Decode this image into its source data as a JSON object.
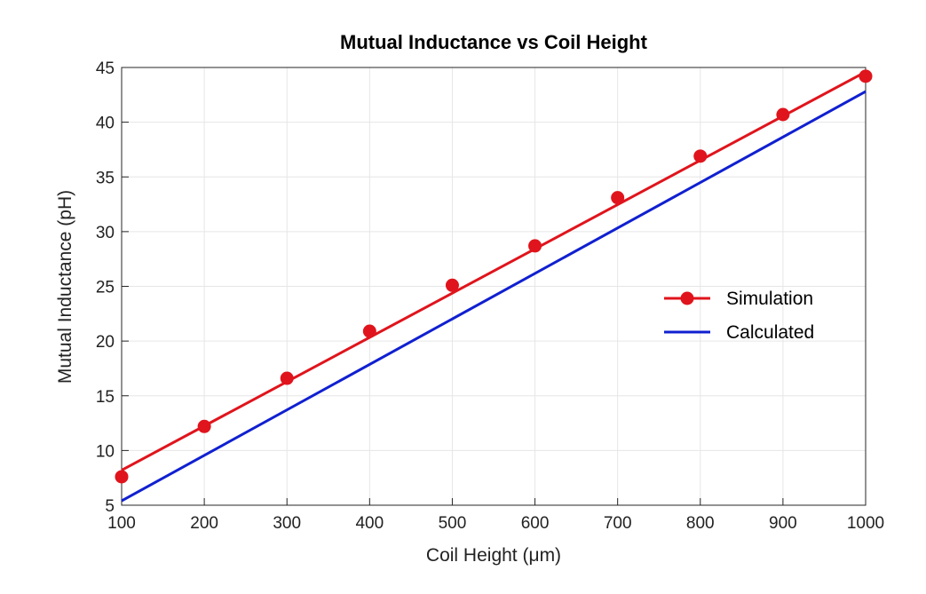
{
  "chart_data": {
    "type": "line",
    "title": "Mutual Inductance vs Coil Height",
    "xlabel": "Coil Height (μm)",
    "ylabel": "Mutual Inductance (pH)",
    "xlim": [
      100,
      1000
    ],
    "ylim": [
      5,
      45
    ],
    "xticks": [
      100,
      200,
      300,
      400,
      500,
      600,
      700,
      800,
      900,
      1000
    ],
    "yticks": [
      5,
      10,
      15,
      20,
      25,
      30,
      35,
      40,
      45
    ],
    "grid": true,
    "legend_position": "right",
    "series": [
      {
        "name": "Simulation",
        "color": "#e0141c",
        "marker": "circle",
        "x": [
          100,
          200,
          300,
          400,
          500,
          600,
          700,
          800,
          900,
          1000
        ],
        "y": [
          7.6,
          12.2,
          16.6,
          20.9,
          25.1,
          28.7,
          33.1,
          36.9,
          40.7,
          44.2
        ],
        "fit_line": {
          "x": [
            100,
            1000
          ],
          "y": [
            8.2,
            44.6
          ]
        }
      },
      {
        "name": "Calculated",
        "color": "#1020d0",
        "marker": "none",
        "x": [
          100,
          1000
        ],
        "y": [
          5.4,
          42.8
        ]
      }
    ]
  }
}
